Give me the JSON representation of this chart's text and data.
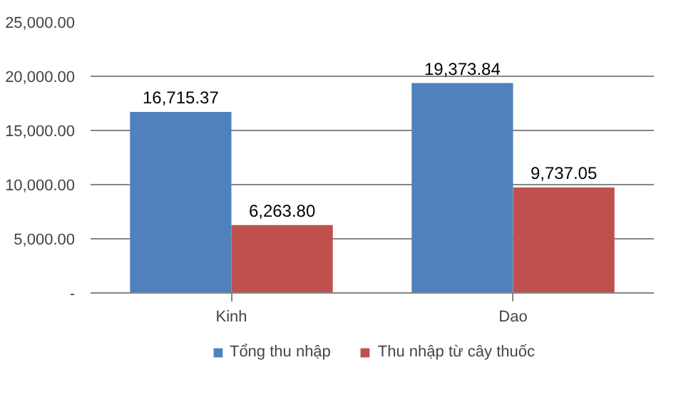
{
  "chart_data": {
    "type": "bar",
    "categories": [
      "Kinh",
      "Dao"
    ],
    "series": [
      {
        "name": "Tổng thu nhập",
        "color": "#4f81bd",
        "values": [
          16715.37,
          19373.84
        ],
        "value_labels": [
          "16,715.37",
          "19,373.84"
        ]
      },
      {
        "name": "Thu nhập từ cây thuốc",
        "color": "#c0504d",
        "values": [
          6263.8,
          9737.05
        ],
        "value_labels": [
          "6,263.80",
          "9,737.05"
        ]
      }
    ],
    "ylim": [
      0,
      25000
    ],
    "yticks": [
      {
        "value": 0,
        "label": "-"
      },
      {
        "value": 5000,
        "label": "5,000.00"
      },
      {
        "value": 10000,
        "label": "10,000.00"
      },
      {
        "value": 15000,
        "label": "15,000.00"
      },
      {
        "value": 20000,
        "label": "20,000.00"
      },
      {
        "value": 25000,
        "label": "25,000.00"
      }
    ],
    "grid": "y",
    "legend": "bottom"
  }
}
